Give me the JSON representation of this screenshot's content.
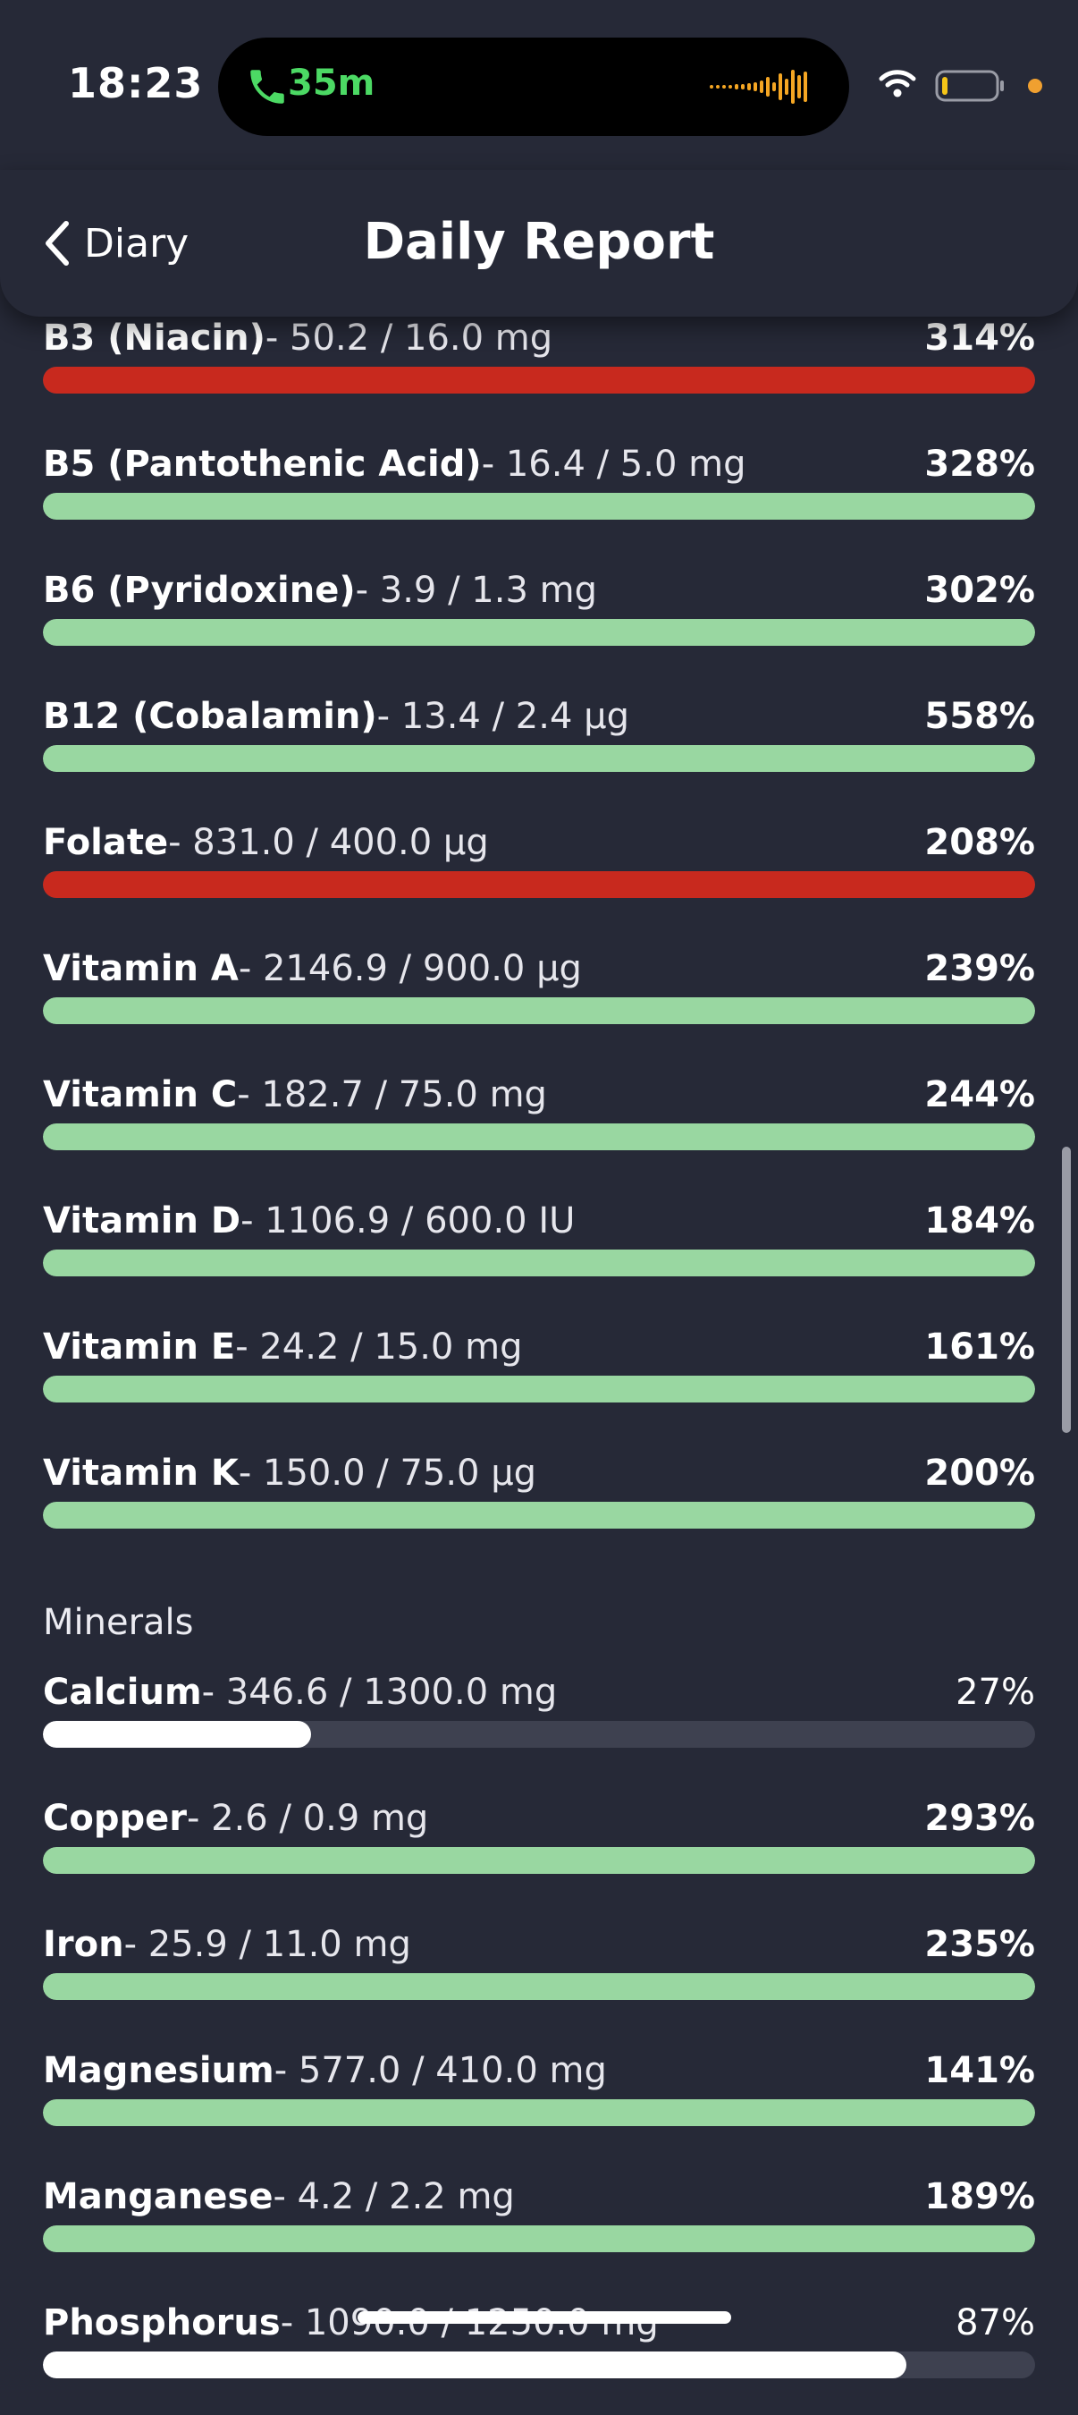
{
  "status": {
    "time": "18:23",
    "call_time": "35m"
  },
  "header": {
    "back_label": "Diary",
    "title": "Daily Report"
  },
  "colors": {
    "over": "#c8291e",
    "good": "#99d7a1",
    "low": "#ffffff",
    "track": "#3e4150"
  },
  "vitamins": [
    {
      "name": "B3 (Niacin)",
      "amount": "- 50.2 / 16.0 mg",
      "percent": "314%",
      "fraction": 1.0,
      "status": "over"
    },
    {
      "name": "B5 (Pantothenic Acid)",
      "amount": "- 16.4 / 5.0 mg",
      "percent": "328%",
      "fraction": 1.0,
      "status": "good"
    },
    {
      "name": "B6 (Pyridoxine)",
      "amount": "- 3.9 / 1.3 mg",
      "percent": "302%",
      "fraction": 1.0,
      "status": "good"
    },
    {
      "name": "B12 (Cobalamin)",
      "amount": "- 13.4 / 2.4 µg",
      "percent": "558%",
      "fraction": 1.0,
      "status": "good"
    },
    {
      "name": "Folate",
      "amount": "- 831.0 / 400.0 µg",
      "percent": "208%",
      "fraction": 1.0,
      "status": "over"
    },
    {
      "name": "Vitamin A",
      "amount": "- 2146.9 / 900.0 µg",
      "percent": "239%",
      "fraction": 1.0,
      "status": "good"
    },
    {
      "name": "Vitamin C",
      "amount": "- 182.7 / 75.0 mg",
      "percent": "244%",
      "fraction": 1.0,
      "status": "good"
    },
    {
      "name": "Vitamin D",
      "amount": "- 1106.9 / 600.0 IU",
      "percent": "184%",
      "fraction": 1.0,
      "status": "good"
    },
    {
      "name": "Vitamin E",
      "amount": "- 24.2 / 15.0 mg",
      "percent": "161%",
      "fraction": 1.0,
      "status": "good"
    },
    {
      "name": "Vitamin K",
      "amount": "- 150.0 / 75.0 µg",
      "percent": "200%",
      "fraction": 1.0,
      "status": "good"
    }
  ],
  "minerals_title": "Minerals",
  "minerals": [
    {
      "name": "Calcium",
      "amount": "- 346.6 / 1300.0 mg",
      "percent": "27%",
      "fraction": 0.27,
      "status": "low"
    },
    {
      "name": "Copper",
      "amount": "- 2.6 / 0.9 mg",
      "percent": "293%",
      "fraction": 1.0,
      "status": "good"
    },
    {
      "name": "Iron",
      "amount": "- 25.9 / 11.0 mg",
      "percent": "235%",
      "fraction": 1.0,
      "status": "good"
    },
    {
      "name": "Magnesium",
      "amount": "- 577.0 / 410.0 mg",
      "percent": "141%",
      "fraction": 1.0,
      "status": "good"
    },
    {
      "name": "Manganese",
      "amount": "- 4.2 / 2.2 mg",
      "percent": "189%",
      "fraction": 1.0,
      "status": "good"
    },
    {
      "name": "Phosphorus",
      "amount": "- 1090.0 / 1250.0 mg",
      "percent": "87%",
      "fraction": 0.87,
      "status": "low"
    }
  ]
}
